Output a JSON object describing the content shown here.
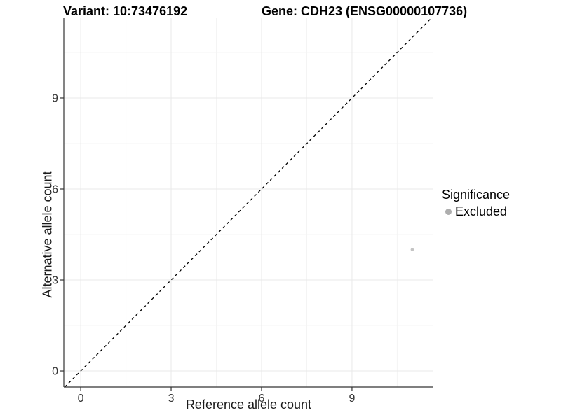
{
  "titles": {
    "variant": "Variant: 10:73476192",
    "gene": "Gene: CDH23 (ENSG00000107736)"
  },
  "chart_data": {
    "type": "scatter",
    "xlabel": "Reference allele count",
    "ylabel": "Alternative allele count",
    "x_ticks": [
      0,
      3,
      6,
      9
    ],
    "y_ticks": [
      0,
      3,
      6,
      9
    ],
    "x_minor_ticks": [
      1.5,
      4.5,
      7.5,
      10.5
    ],
    "y_minor_ticks": [
      1.5,
      4.5,
      7.5,
      10.5
    ],
    "xlim": [
      -0.56,
      11.7
    ],
    "ylim": [
      -0.53,
      11.63
    ],
    "grid": "major-and-minor",
    "points": [
      {
        "x": 11,
        "y": 4,
        "series": "Excluded"
      }
    ],
    "reference_line": {
      "kind": "identity y=x",
      "style": "dashed",
      "color": "#000000"
    },
    "legend": {
      "title": "Significance",
      "position": "right",
      "items": [
        {
          "label": "Excluded",
          "color": "#aeaeae"
        }
      ]
    },
    "colors": {
      "point": "#c4c4c4",
      "grid_major": "#e9e9e9",
      "grid_minor": "#f4f4f4",
      "axis_line": "#333333",
      "tick_text": "#333333"
    }
  }
}
